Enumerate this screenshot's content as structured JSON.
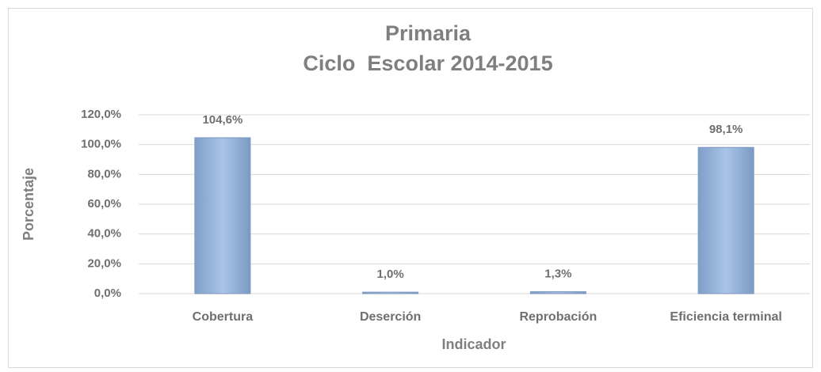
{
  "chart_data": {
    "type": "bar",
    "title": "Primaria",
    "subtitle": "Ciclo  Escolar 2014-2015",
    "y_label": "Porcentaje",
    "x_label": "Indicador",
    "categories": [
      "Cobertura",
      "Deserción",
      "Reprobación",
      "Eficiencia terminal"
    ],
    "values": [
      104.6,
      1.0,
      1.3,
      98.1
    ],
    "value_labels": [
      "104,6%",
      "1,0%",
      "1,3%",
      "98,1%"
    ],
    "color": "#95b3d7",
    "ylim": [
      0,
      120
    ],
    "yticks": [
      {
        "value": 0,
        "label": "0,0%"
      },
      {
        "value": 20,
        "label": "20,0%"
      },
      {
        "value": 40,
        "label": "40,0%"
      },
      {
        "value": 60,
        "label": "60,0%"
      },
      {
        "value": 80,
        "label": "80,0%"
      },
      {
        "value": 100,
        "label": "100,0%"
      },
      {
        "value": 120,
        "label": "120,0%"
      }
    ],
    "grid": true
  }
}
